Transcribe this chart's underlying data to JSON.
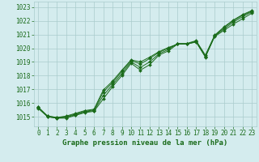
{
  "xlabel": "Graphe pression niveau de la mer (hPa)",
  "x": [
    0,
    1,
    2,
    3,
    4,
    5,
    6,
    7,
    8,
    9,
    10,
    11,
    12,
    13,
    14,
    15,
    16,
    17,
    18,
    19,
    20,
    21,
    22,
    23
  ],
  "line1": [
    1015.6,
    1015.0,
    1014.9,
    1014.9,
    1015.1,
    1015.3,
    1015.4,
    1016.3,
    1017.2,
    1018.0,
    1018.9,
    1018.4,
    1018.8,
    1019.5,
    1019.8,
    1020.3,
    1020.3,
    1020.5,
    1019.4,
    1020.9,
    1021.5,
    1022.0,
    1022.4,
    1022.7
  ],
  "line2": [
    1015.7,
    1015.0,
    1014.9,
    1014.95,
    1015.15,
    1015.35,
    1015.45,
    1016.55,
    1017.35,
    1018.15,
    1019.0,
    1018.6,
    1019.0,
    1019.6,
    1019.9,
    1020.35,
    1020.35,
    1020.55,
    1019.5,
    1020.95,
    1021.55,
    1022.05,
    1022.45,
    1022.75
  ],
  "line3": [
    1015.7,
    1015.05,
    1014.95,
    1015.0,
    1015.2,
    1015.4,
    1015.5,
    1016.8,
    1017.5,
    1018.3,
    1019.1,
    1018.85,
    1019.25,
    1019.7,
    1020.0,
    1020.3,
    1020.3,
    1020.5,
    1019.4,
    1020.9,
    1021.4,
    1021.9,
    1022.3,
    1022.65
  ],
  "line4": [
    1015.65,
    1015.05,
    1014.95,
    1015.05,
    1015.25,
    1015.45,
    1015.55,
    1016.95,
    1017.6,
    1018.4,
    1019.15,
    1019.0,
    1019.35,
    1019.75,
    1020.05,
    1020.3,
    1020.3,
    1020.45,
    1019.35,
    1020.85,
    1021.3,
    1021.75,
    1022.15,
    1022.55
  ],
  "line_color": "#1a6b1a",
  "marker_color": "#1a6b1a",
  "bg_color": "#d4ecee",
  "grid_color": "#aacccc",
  "text_color": "#1a6b1a",
  "ylim_min": 1014.3,
  "ylim_max": 1023.4,
  "yticks": [
    1015,
    1016,
    1017,
    1018,
    1019,
    1020,
    1021,
    1022,
    1023
  ],
  "xticks": [
    0,
    1,
    2,
    3,
    4,
    5,
    6,
    7,
    8,
    9,
    10,
    11,
    12,
    13,
    14,
    15,
    16,
    17,
    18,
    19,
    20,
    21,
    22,
    23
  ],
  "xlabel_fontsize": 6.5,
  "tick_fontsize": 5.5,
  "marker_size": 2.0,
  "line_width": 0.7
}
